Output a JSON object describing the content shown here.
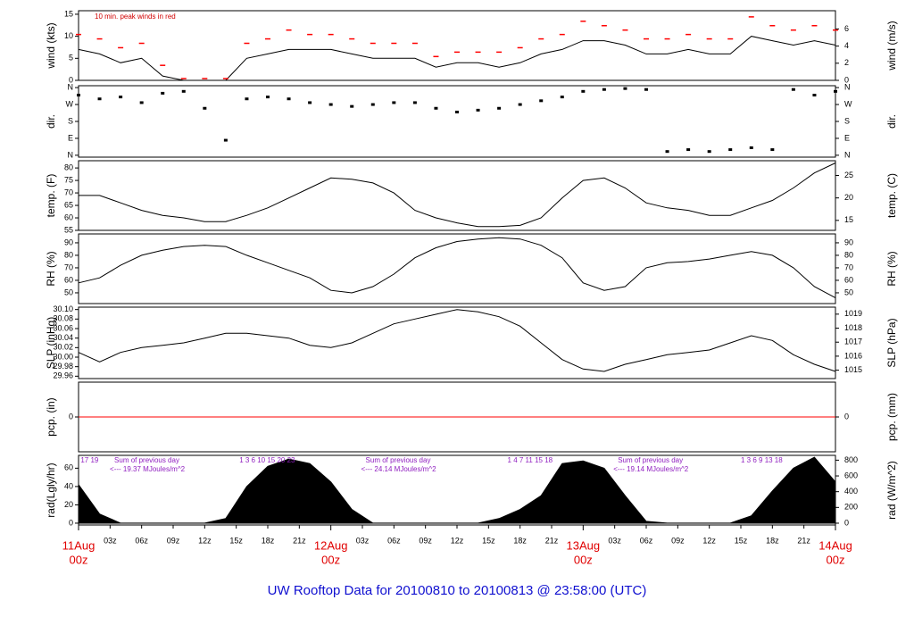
{
  "chart_data": [
    {
      "type": "line",
      "ylabel": "wind (kts)",
      "y2label": "wind (m/s)",
      "annotation": "10 min. peak winds in red",
      "x": [
        0,
        2,
        4,
        6,
        8,
        10,
        12,
        14,
        16,
        18,
        20,
        22,
        24,
        26,
        28,
        30,
        32,
        34,
        36,
        38,
        40,
        42,
        44,
        46,
        48,
        50,
        52,
        54,
        56,
        58,
        60,
        62,
        64,
        66,
        68,
        70,
        72
      ],
      "series": [
        {
          "color": "#000000",
          "values": [
            7,
            6,
            4,
            5,
            1,
            0,
            0,
            0,
            5,
            6,
            7,
            7,
            7,
            6,
            5,
            5,
            5,
            3,
            4,
            4,
            3,
            4,
            6,
            7,
            9,
            9,
            8,
            6,
            6,
            7,
            6,
            6,
            10,
            9,
            8,
            9,
            8
          ]
        },
        {
          "color": "#ff0000",
          "marker": "dash",
          "values": [
            10,
            9,
            7,
            8,
            3,
            0,
            0,
            0,
            8,
            9,
            11,
            10,
            10,
            9,
            8,
            8,
            8,
            5,
            6,
            6,
            6,
            7,
            9,
            10,
            13,
            12,
            11,
            9,
            9,
            10,
            9,
            9,
            14,
            12,
            11,
            12,
            11
          ]
        }
      ],
      "ylim": [
        0,
        15.8
      ],
      "yticks": [
        0,
        5,
        10,
        15
      ],
      "y2lim": [
        0,
        8.13
      ],
      "y2ticks": [
        0,
        2,
        4,
        6
      ]
    },
    {
      "type": "scatter",
      "ylabel": "dir.",
      "y2label": "dir.",
      "x": [
        0,
        2,
        4,
        6,
        8,
        10,
        12,
        14,
        16,
        18,
        20,
        22,
        24,
        26,
        28,
        30,
        32,
        34,
        36,
        38,
        40,
        42,
        44,
        46,
        48,
        50,
        52,
        54,
        56,
        58,
        60,
        62,
        64,
        66,
        68,
        70,
        72
      ],
      "series": [
        {
          "color": "#000000",
          "values": [
            320,
            300,
            310,
            280,
            330,
            340,
            250,
            80,
            300,
            310,
            300,
            280,
            270,
            260,
            270,
            280,
            280,
            250,
            230,
            240,
            250,
            270,
            290,
            310,
            340,
            350,
            355,
            350,
            20,
            30,
            20,
            30,
            40,
            30,
            350,
            320,
            340
          ]
        }
      ],
      "ylim": [
        -10,
        370
      ],
      "yticks": [
        {
          "value": 0,
          "label": "N"
        },
        {
          "value": 90,
          "label": "E"
        },
        {
          "value": 180,
          "label": "S"
        },
        {
          "value": 270,
          "label": "W"
        },
        {
          "value": 360,
          "label": "N"
        }
      ],
      "y2lim": [
        -10,
        370
      ],
      "y2ticks": [
        {
          "value": 0,
          "label": "N"
        },
        {
          "value": 90,
          "label": "E"
        },
        {
          "value": 180,
          "label": "S"
        },
        {
          "value": 270,
          "label": "W"
        },
        {
          "value": 360,
          "label": "N"
        }
      ]
    },
    {
      "type": "line",
      "ylabel": "temp. (F)",
      "y2label": "temp. (C)",
      "x": [
        0,
        2,
        4,
        6,
        8,
        10,
        12,
        14,
        16,
        18,
        20,
        22,
        24,
        26,
        28,
        30,
        32,
        34,
        36,
        38,
        40,
        42,
        44,
        46,
        48,
        50,
        52,
        54,
        56,
        58,
        60,
        62,
        64,
        66,
        68,
        70,
        72
      ],
      "series": [
        {
          "color": "#000000",
          "values": [
            69,
            69,
            66,
            63,
            61,
            60,
            58.5,
            58.5,
            61,
            64,
            68,
            72,
            76,
            75.5,
            74,
            70,
            63,
            60,
            58,
            56.5,
            56.5,
            57,
            60,
            68,
            75,
            76,
            72,
            66,
            64,
            63,
            61,
            61,
            64,
            67,
            72,
            78,
            82
          ]
        }
      ],
      "ylim": [
        55,
        82.9
      ],
      "yticks": [
        55,
        60,
        65,
        70,
        75,
        80
      ],
      "y2lim": [
        12.78,
        28.28
      ],
      "y2ticks": [
        15,
        20,
        25
      ]
    },
    {
      "type": "line",
      "ylabel": "RH (%)",
      "y2label": "RH (%)",
      "x": [
        0,
        2,
        4,
        6,
        8,
        10,
        12,
        14,
        16,
        18,
        20,
        22,
        24,
        26,
        28,
        30,
        32,
        34,
        36,
        38,
        40,
        42,
        44,
        46,
        48,
        50,
        52,
        54,
        56,
        58,
        60,
        62,
        64,
        66,
        68,
        70,
        72
      ],
      "series": [
        {
          "color": "#000000",
          "values": [
            58,
            62,
            72,
            80,
            84,
            87,
            88,
            87,
            80,
            74,
            68,
            62,
            52,
            50,
            55,
            65,
            78,
            86,
            91,
            93,
            94,
            93,
            88,
            78,
            58,
            52,
            55,
            70,
            74,
            75,
            77,
            80,
            83,
            80,
            70,
            55,
            46
          ]
        }
      ],
      "ylim": [
        41.4,
        97.1
      ],
      "yticks": [
        50,
        60,
        70,
        80,
        90
      ],
      "y2lim": [
        41.4,
        97.1
      ],
      "y2ticks": [
        50,
        60,
        70,
        80,
        90
      ]
    },
    {
      "type": "line",
      "ylabel": "SLP (inHg)",
      "y2label": "SLP (hPa)",
      "x": [
        0,
        2,
        4,
        6,
        8,
        10,
        12,
        14,
        16,
        18,
        20,
        22,
        24,
        26,
        28,
        30,
        32,
        34,
        36,
        38,
        40,
        42,
        44,
        46,
        48,
        50,
        52,
        54,
        56,
        58,
        60,
        62,
        64,
        66,
        68,
        70,
        72
      ],
      "series": [
        {
          "color": "#000000",
          "values": [
            30.01,
            29.99,
            30.01,
            30.02,
            30.025,
            30.03,
            30.04,
            30.05,
            30.05,
            30.045,
            30.04,
            30.025,
            30.02,
            30.03,
            30.05,
            30.07,
            30.08,
            30.09,
            30.1,
            30.095,
            30.085,
            30.065,
            30.03,
            29.995,
            29.975,
            29.97,
            29.985,
            29.995,
            30.005,
            30.01,
            30.015,
            30.03,
            30.045,
            30.035,
            30.005,
            29.985,
            29.97
          ]
        }
      ],
      "ylim": [
        29.955,
        30.105
      ],
      "yticks": [
        29.96,
        29.98,
        {
          "value": 30,
          "label": "30.00"
        },
        30.02,
        30.04,
        30.06,
        30.08,
        {
          "value": 30.1,
          "label": "30.10"
        }
      ],
      "y2lim": [
        1014.4,
        1019.5
      ],
      "y2ticks": [
        1015,
        1016,
        1017,
        1018,
        1019
      ]
    },
    {
      "type": "line",
      "ylabel": "pcp. (in)",
      "y2label": "pcp. (mm)",
      "x": [
        0,
        72
      ],
      "series": [
        {
          "color": "#ff0000",
          "values": [
            0,
            0
          ]
        }
      ],
      "ylim": [
        -1,
        1
      ],
      "yticks": [
        0
      ],
      "y2lim": [
        -1,
        1
      ],
      "y2ticks": [
        0
      ]
    },
    {
      "type": "area",
      "ylabel": "rad(Lgly/hr)",
      "y2label": "rad (W/m^2)",
      "title": "UW Rooftop Data for 20100810  to  20100813 @ 23:58:00  (UTC)",
      "x": [
        0,
        2,
        4,
        6,
        8,
        10,
        12,
        14,
        16,
        18,
        20,
        22,
        24,
        26,
        28,
        30,
        32,
        34,
        36,
        38,
        40,
        42,
        44,
        46,
        48,
        50,
        52,
        54,
        56,
        58,
        60,
        62,
        64,
        66,
        68,
        70,
        72
      ],
      "series": [
        {
          "color": "#000000",
          "values": [
            42,
            10,
            0,
            0,
            0,
            0,
            0,
            5,
            40,
            62,
            70,
            65,
            45,
            15,
            0,
            0,
            0,
            0,
            0,
            0,
            5,
            15,
            30,
            65,
            68,
            60,
            30,
            2,
            0,
            0,
            0,
            0,
            8,
            35,
            60,
            72,
            45
          ]
        }
      ],
      "ylim": [
        -2,
        74
      ],
      "yticks": [
        0,
        20,
        40,
        60
      ],
      "y2lim": [
        -23,
        861
      ],
      "y2ticks": [
        0,
        200,
        400,
        600,
        800
      ],
      "day_notes": [
        {
          "hours": "17   19",
          "hours_x": 0.2,
          "note": "Sum of previous day",
          "total": "<--- 19.37 MJoules/m^2",
          "note_x": 3.4
        },
        {
          "hours": "1    3    6    10    15    20    23",
          "hours_x": 15.3,
          "note": "Sum of previous day",
          "total": "<--- 24.14 MJoules/m^2",
          "note_x": 27.3
        },
        {
          "hours": "1    4    7    11    15    18",
          "hours_x": 40.8,
          "note": "Sum of previous day",
          "total": "<--- 19.14 MJoules/m^2",
          "note_x": 51.3
        },
        {
          "hours": "1    3    6    9    13    18",
          "hours_x": 63.0,
          "note": null,
          "total": null,
          "note_x": null
        }
      ],
      "xlim": [
        0,
        72
      ],
      "xticks": [
        {
          "value": 3,
          "label": "03z"
        },
        {
          "value": 6,
          "label": "06z"
        },
        {
          "value": 9,
          "label": "09z"
        },
        {
          "value": 12,
          "label": "12z"
        },
        {
          "value": 15,
          "label": "15z"
        },
        {
          "value": 18,
          "label": "18z"
        },
        {
          "value": 21,
          "label": "21z"
        },
        {
          "value": 27,
          "label": "03z"
        },
        {
          "value": 30,
          "label": "06z"
        },
        {
          "value": 33,
          "label": "09z"
        },
        {
          "value": 36,
          "label": "12z"
        },
        {
          "value": 39,
          "label": "15z"
        },
        {
          "value": 42,
          "label": "18z"
        },
        {
          "value": 45,
          "label": "21z"
        },
        {
          "value": 51,
          "label": "03z"
        },
        {
          "value": 54,
          "label": "06z"
        },
        {
          "value": 57,
          "label": "09z"
        },
        {
          "value": 60,
          "label": "12z"
        },
        {
          "value": 63,
          "label": "15z"
        },
        {
          "value": 66,
          "label": "18z"
        },
        {
          "value": 69,
          "label": "21z"
        }
      ],
      "date_ticks": [
        {
          "value": 0,
          "label": "11Aug",
          "hour": "00z"
        },
        {
          "value": 24,
          "label": "12Aug",
          "hour": "00z"
        },
        {
          "value": 48,
          "label": "13Aug",
          "hour": "00z"
        },
        {
          "value": 72,
          "label": "14Aug",
          "hour": "00z"
        }
      ]
    }
  ]
}
